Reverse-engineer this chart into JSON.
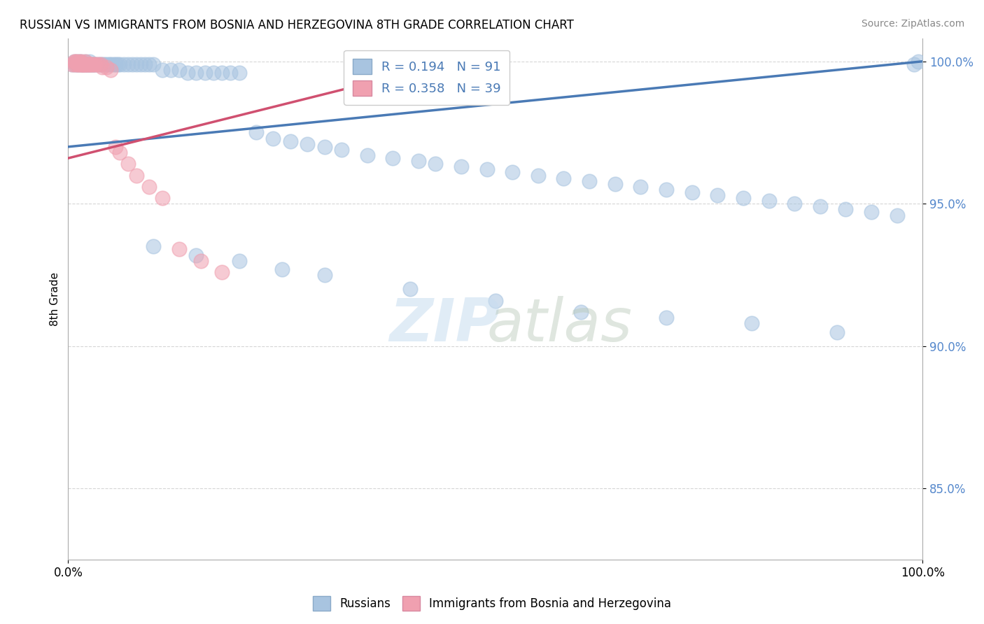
{
  "title": "RUSSIAN VS IMMIGRANTS FROM BOSNIA AND HERZEGOVINA 8TH GRADE CORRELATION CHART",
  "source": "Source: ZipAtlas.com",
  "ylabel": "8th Grade",
  "blue_R": 0.194,
  "blue_N": 91,
  "pink_R": 0.358,
  "pink_N": 39,
  "blue_color": "#a8c4e0",
  "pink_color": "#f0a0b0",
  "blue_line_color": "#4a7ab5",
  "pink_line_color": "#d05070",
  "blue_line_x": [
    0.0,
    1.0
  ],
  "blue_line_y": [
    0.97,
    1.0
  ],
  "pink_line_x": [
    0.0,
    0.48
  ],
  "pink_line_y": [
    0.966,
    1.002
  ],
  "xlim": [
    0.0,
    1.0
  ],
  "ylim": [
    0.825,
    1.008
  ],
  "yticks": [
    0.85,
    0.9,
    0.95,
    1.0
  ],
  "ytick_labels": [
    "85.0%",
    "90.0%",
    "95.0%",
    "100.0%"
  ],
  "xticks": [
    0.0,
    1.0
  ],
  "xtick_labels": [
    "0.0%",
    "100.0%"
  ],
  "watermark_zip": "ZIP",
  "watermark_atlas": "atlas",
  "legend_blue": "Russians",
  "legend_pink": "Immigrants from Bosnia and Herzegovina",
  "blue_scatter_x": [
    0.005,
    0.007,
    0.008,
    0.01,
    0.01,
    0.012,
    0.013,
    0.015,
    0.015,
    0.016,
    0.018,
    0.02,
    0.02,
    0.022,
    0.023,
    0.025,
    0.025,
    0.027,
    0.028,
    0.03,
    0.032,
    0.035,
    0.037,
    0.04,
    0.042,
    0.045,
    0.048,
    0.05,
    0.053,
    0.055,
    0.058,
    0.06,
    0.065,
    0.07,
    0.075,
    0.08,
    0.085,
    0.09,
    0.095,
    0.1,
    0.11,
    0.12,
    0.13,
    0.14,
    0.15,
    0.16,
    0.17,
    0.18,
    0.19,
    0.2,
    0.22,
    0.24,
    0.26,
    0.28,
    0.3,
    0.32,
    0.35,
    0.38,
    0.41,
    0.43,
    0.46,
    0.49,
    0.52,
    0.55,
    0.58,
    0.61,
    0.64,
    0.67,
    0.7,
    0.73,
    0.76,
    0.79,
    0.82,
    0.85,
    0.88,
    0.91,
    0.94,
    0.97,
    0.99,
    0.1,
    0.15,
    0.2,
    0.25,
    0.3,
    0.4,
    0.5,
    0.6,
    0.7,
    0.8,
    0.9,
    0.995
  ],
  "blue_scatter_y": [
    0.999,
    1.0,
    0.999,
    0.999,
    1.0,
    0.999,
    1.0,
    0.999,
    1.0,
    0.999,
    0.999,
    0.999,
    1.0,
    0.999,
    0.999,
    0.999,
    1.0,
    0.999,
    0.999,
    0.999,
    0.999,
    0.999,
    0.999,
    0.999,
    0.999,
    0.999,
    0.999,
    0.999,
    0.999,
    0.999,
    0.999,
    0.999,
    0.999,
    0.999,
    0.999,
    0.999,
    0.999,
    0.999,
    0.999,
    0.999,
    0.997,
    0.997,
    0.997,
    0.996,
    0.996,
    0.996,
    0.996,
    0.996,
    0.996,
    0.996,
    0.975,
    0.973,
    0.972,
    0.971,
    0.97,
    0.969,
    0.967,
    0.966,
    0.965,
    0.964,
    0.963,
    0.962,
    0.961,
    0.96,
    0.959,
    0.958,
    0.957,
    0.956,
    0.955,
    0.954,
    0.953,
    0.952,
    0.951,
    0.95,
    0.949,
    0.948,
    0.947,
    0.946,
    0.999,
    0.935,
    0.932,
    0.93,
    0.927,
    0.925,
    0.92,
    0.916,
    0.912,
    0.91,
    0.908,
    0.905,
    1.0
  ],
  "pink_scatter_x": [
    0.005,
    0.007,
    0.008,
    0.009,
    0.01,
    0.01,
    0.012,
    0.013,
    0.014,
    0.015,
    0.015,
    0.016,
    0.017,
    0.018,
    0.019,
    0.02,
    0.02,
    0.022,
    0.023,
    0.024,
    0.025,
    0.027,
    0.028,
    0.03,
    0.032,
    0.035,
    0.038,
    0.04,
    0.045,
    0.05,
    0.055,
    0.06,
    0.07,
    0.08,
    0.095,
    0.11,
    0.13,
    0.155,
    0.18
  ],
  "pink_scatter_y": [
    0.999,
    1.0,
    0.999,
    1.0,
    0.999,
    1.0,
    0.999,
    0.999,
    1.0,
    0.999,
    1.0,
    0.999,
    0.999,
    0.999,
    0.999,
    0.999,
    1.0,
    0.999,
    0.999,
    0.999,
    0.999,
    0.999,
    0.999,
    0.999,
    0.999,
    0.999,
    0.999,
    0.998,
    0.998,
    0.997,
    0.97,
    0.968,
    0.964,
    0.96,
    0.956,
    0.952,
    0.934,
    0.93,
    0.926
  ]
}
